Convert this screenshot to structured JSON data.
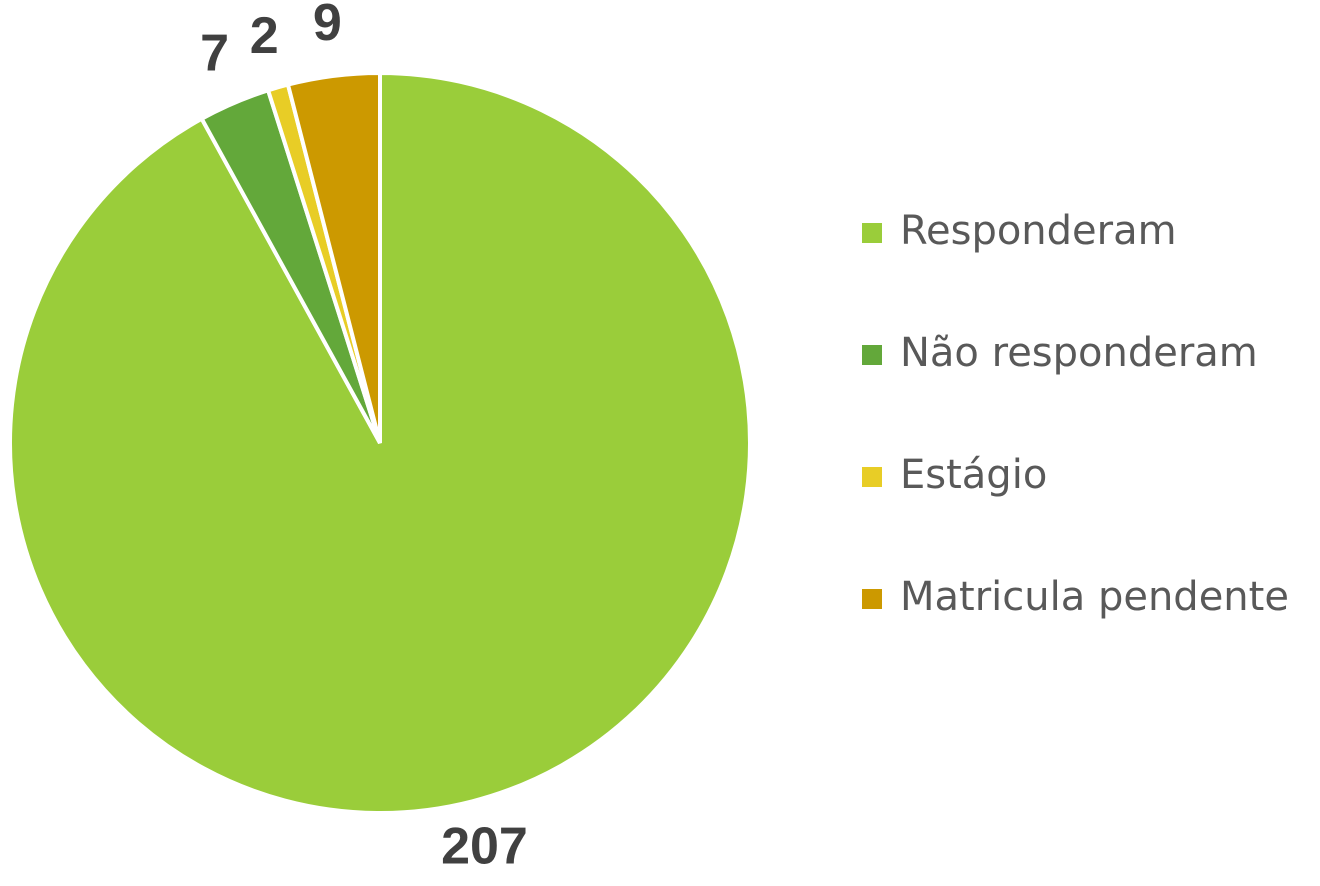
{
  "chart_data": {
    "type": "pie",
    "categories": [
      "Responderam",
      "Não responderam",
      "Estágio",
      "Matricula pendente"
    ],
    "values": [
      207,
      7,
      2,
      9
    ],
    "colors": [
      "#9acd3a",
      "#63a83a",
      "#e8cd26",
      "#cc9900"
    ],
    "legend": "right"
  }
}
